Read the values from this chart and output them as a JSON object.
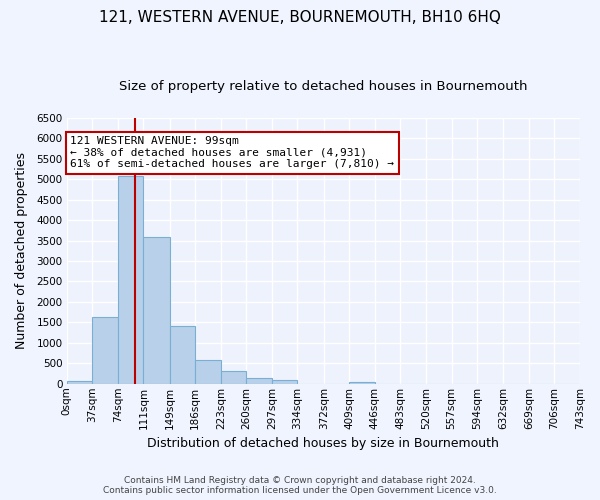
{
  "title": "121, WESTERN AVENUE, BOURNEMOUTH, BH10 6HQ",
  "subtitle": "Size of property relative to detached houses in Bournemouth",
  "xlabel": "Distribution of detached houses by size in Bournemouth",
  "ylabel": "Number of detached properties",
  "bin_edges": [
    0,
    37,
    74,
    111,
    149,
    186,
    223,
    260,
    297,
    334,
    372,
    409,
    446,
    483,
    520,
    557,
    594,
    632,
    669,
    706,
    743
  ],
  "bar_heights": [
    60,
    1620,
    5080,
    3580,
    1420,
    580,
    300,
    150,
    80,
    0,
    0,
    50,
    0,
    0,
    0,
    0,
    0,
    0,
    0,
    0
  ],
  "bar_color": "#b8d0ea",
  "bar_edgecolor": "#7aafd4",
  "property_line_x": 99,
  "property_line_color": "#bb0000",
  "annotation_line1": "121 WESTERN AVENUE: 99sqm",
  "annotation_line2": "← 38% of detached houses are smaller (4,931)",
  "annotation_line3": "61% of semi-detached houses are larger (7,810) →",
  "annotation_box_edgecolor": "#bb0000",
  "ylim": [
    0,
    6500
  ],
  "yticks": [
    0,
    500,
    1000,
    1500,
    2000,
    2500,
    3000,
    3500,
    4000,
    4500,
    5000,
    5500,
    6000,
    6500
  ],
  "tick_labels": [
    "0sqm",
    "37sqm",
    "74sqm",
    "111sqm",
    "149sqm",
    "186sqm",
    "223sqm",
    "260sqm",
    "297sqm",
    "334sqm",
    "372sqm",
    "409sqm",
    "446sqm",
    "483sqm",
    "520sqm",
    "557sqm",
    "594sqm",
    "632sqm",
    "669sqm",
    "706sqm",
    "743sqm"
  ],
  "footer_line1": "Contains HM Land Registry data © Crown copyright and database right 2024.",
  "footer_line2": "Contains public sector information licensed under the Open Government Licence v3.0.",
  "fig_facecolor": "#f0f4ff",
  "plot_facecolor": "#eef2fc",
  "grid_color": "#ffffff",
  "title_fontsize": 11,
  "subtitle_fontsize": 9.5,
  "label_fontsize": 9,
  "tick_fontsize": 7.5,
  "annot_fontsize": 8,
  "footer_fontsize": 6.5
}
